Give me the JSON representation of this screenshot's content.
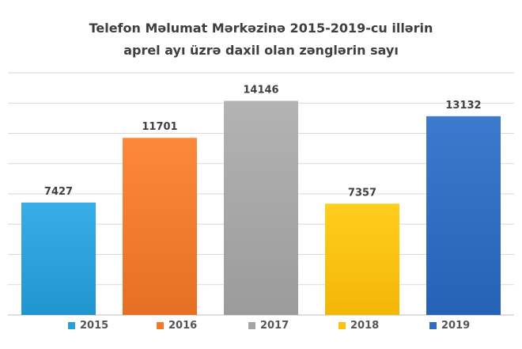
{
  "chart_data": {
    "type": "bar",
    "title_line1": "Telefon Məlumat Mərkəzinə 2015-2019-cu illərin",
    "title_line2": "aprel ayı üzrə daxil olan zənglərin sayı",
    "categories": [
      "2015",
      "2016",
      "2017",
      "2018",
      "2019"
    ],
    "values": [
      7427,
      11701,
      14146,
      7357,
      13132
    ],
    "colors": [
      "#2a9fd8",
      "#ef7a2e",
      "#a5a5a5",
      "#fdc010",
      "#2f6cc0"
    ],
    "ylim": [
      0,
      16000
    ],
    "grid": true,
    "legend": "bottom",
    "data_labels": true
  }
}
